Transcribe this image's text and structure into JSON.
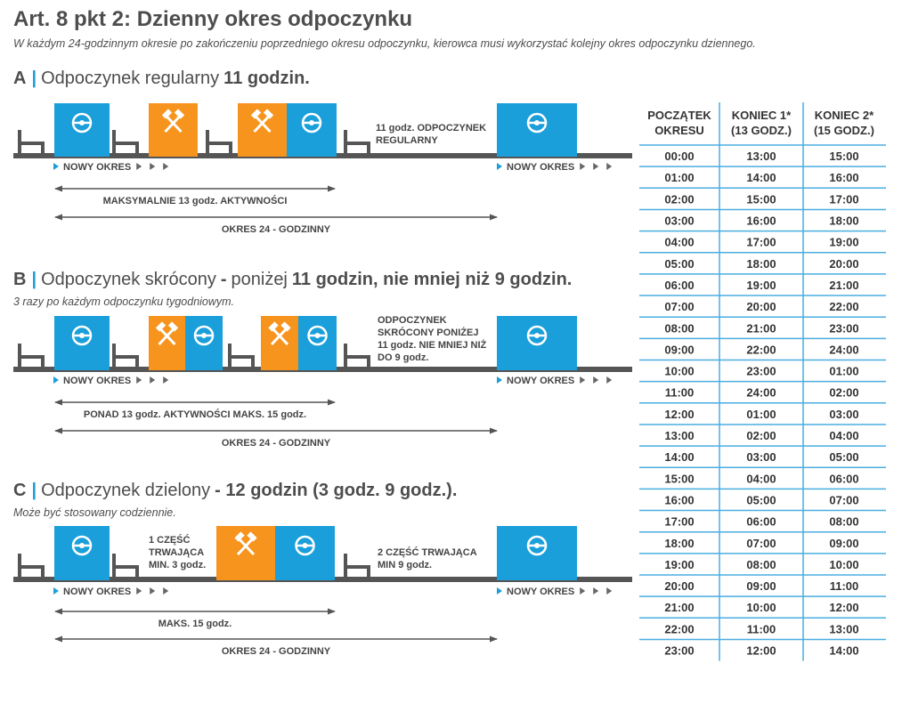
{
  "title": "Art. 8 pkt 2: Dzienny okres odpoczynku",
  "subtitle": "W każdym 24-godzinnym okresie po zakończeniu poprzedniego okresu odpoczynku, kierowca musi wykorzystać kolejny okres odpoczynku dziennego.",
  "sections": [
    {
      "letter": "A",
      "heading": [
        {
          "text": "Odpoczynek regularny",
          "bold": false
        },
        {
          "text": "11 godzin.",
          "bold": true
        }
      ],
      "box_labels": [
        [
          "11 godz. ODPOCZYNEK",
          "REGULARNY"
        ]
      ],
      "new_period": "NOWY OKRES",
      "active": "MAKSYMALNIE 13 godz. AKTYWNOŚCI",
      "period": "OKRES 24 - GODZINNY"
    },
    {
      "letter": "B",
      "heading": [
        {
          "text": "Odpoczynek skrócony",
          "bold": false
        },
        {
          "text": "-",
          "bold": true
        },
        {
          "text": "poniżej",
          "bold": false
        },
        {
          "text": "11 godzin, nie mniej niż 9 godzin.",
          "bold": true
        }
      ],
      "note": "3 razy po każdym odpoczynku tygodniowym.",
      "box_labels": [
        [
          "ODPOCZYNEK",
          "SKRÓCONY PONIŻEJ",
          "11 godz. NIE MNIEJ NIŻ",
          "DO 9 godz."
        ]
      ],
      "new_period": "NOWY OKRES",
      "active": "PONAD 13 godz. AKTYWNOŚCI MAKS. 15 godz.",
      "period": "OKRES 24 - GODZINNY"
    },
    {
      "letter": "C",
      "heading": [
        {
          "text": "Odpoczynek dzielony",
          "bold": false
        },
        {
          "text": "- 12 godzin (3 godz. 9 godz.).",
          "bold": true
        }
      ],
      "note": "Może być stosowany codziennie.",
      "box_labels": [
        [
          "1 CZĘŚĆ",
          "TRWAJĄCA",
          "MIN. 3 godz."
        ],
        [
          "2 CZĘŚĆ TRWAJĄCA",
          "MIN 9 godz."
        ]
      ],
      "new_period": "NOWY OKRES",
      "active": "MAKS. 15 godz.",
      "period": "OKRES 24 - GODZINNY"
    }
  ],
  "table": {
    "headers": [
      [
        "POCZĄTEK",
        "OKRESU"
      ],
      [
        "KONIEC 1*",
        "(13 GODZ.)"
      ],
      [
        "KONIEC 2*",
        "(15 GODZ.)"
      ]
    ],
    "rows": [
      [
        "00:00",
        "13:00",
        "15:00"
      ],
      [
        "01:00",
        "14:00",
        "16:00"
      ],
      [
        "02:00",
        "15:00",
        "17:00"
      ],
      [
        "03:00",
        "16:00",
        "18:00"
      ],
      [
        "04:00",
        "17:00",
        "19:00"
      ],
      [
        "05:00",
        "18:00",
        "20:00"
      ],
      [
        "06:00",
        "19:00",
        "21:00"
      ],
      [
        "07:00",
        "20:00",
        "22:00"
      ],
      [
        "08:00",
        "21:00",
        "23:00"
      ],
      [
        "09:00",
        "22:00",
        "24:00"
      ],
      [
        "10:00",
        "23:00",
        "01:00"
      ],
      [
        "11:00",
        "24:00",
        "02:00"
      ],
      [
        "12:00",
        "01:00",
        "03:00"
      ],
      [
        "13:00",
        "02:00",
        "04:00"
      ],
      [
        "14:00",
        "03:00",
        "05:00"
      ],
      [
        "15:00",
        "04:00",
        "06:00"
      ],
      [
        "16:00",
        "05:00",
        "07:00"
      ],
      [
        "17:00",
        "06:00",
        "08:00"
      ],
      [
        "18:00",
        "07:00",
        "09:00"
      ],
      [
        "19:00",
        "08:00",
        "10:00"
      ],
      [
        "20:00",
        "09:00",
        "11:00"
      ],
      [
        "21:00",
        "10:00",
        "12:00"
      ],
      [
        "22:00",
        "11:00",
        "13:00"
      ],
      [
        "23:00",
        "12:00",
        "14:00"
      ]
    ]
  }
}
